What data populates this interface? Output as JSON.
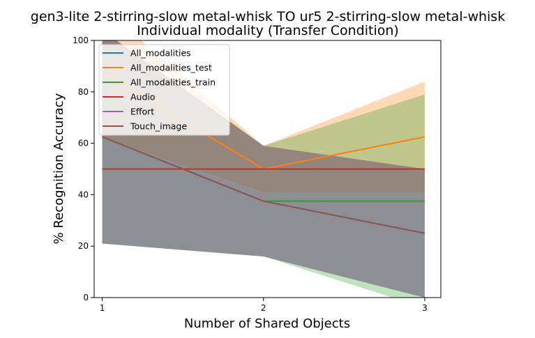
{
  "chart_data": {
    "type": "line",
    "title": "gen3-lite 2-stirring-slow metal-whisk TO ur5 2-stirring-slow metal-whisk",
    "subtitle": "Individual modality (Transfer Condition)",
    "xlabel": "Number of Shared Objects",
    "ylabel": "% Recognition Accuracy",
    "x": [
      1,
      2,
      3
    ],
    "xticks": [
      "1",
      "2",
      "3"
    ],
    "xlim": [
      0.95,
      3.1
    ],
    "ylim": [
      0,
      100
    ],
    "yticks": [
      "0",
      "20",
      "40",
      "60",
      "80",
      "100"
    ],
    "grid": false,
    "legend_position": "top-left",
    "series": [
      {
        "name": "All_modalities",
        "color": "#1f77b4",
        "values": [
          62.5,
          37.5,
          25
        ],
        "lower": [
          21,
          16,
          0
        ],
        "upper": [
          104,
          59,
          50
        ]
      },
      {
        "name": "All_modalities_test",
        "color": "#ff7f0e",
        "values": [
          87.5,
          50,
          62.5
        ],
        "lower": [
          62,
          41,
          41
        ],
        "upper": [
          113,
          59,
          84
        ]
      },
      {
        "name": "All_modalities_train",
        "color": "#2ca02c",
        "values": [
          62.5,
          37.5,
          37.5
        ],
        "lower": [
          21,
          16,
          -4
        ],
        "upper": [
          104,
          59,
          79
        ]
      },
      {
        "name": "Audio",
        "color": "#d62728",
        "values": [
          50,
          50,
          50
        ],
        "lower": [
          50,
          50,
          50
        ],
        "upper": [
          50,
          50,
          50
        ]
      },
      {
        "name": "Effort",
        "color": "#9467bd",
        "values": [
          62.5,
          37.5,
          25
        ],
        "lower": [
          21,
          16,
          0
        ],
        "upper": [
          104,
          59,
          50
        ]
      },
      {
        "name": "Touch_image",
        "color": "#8c564b",
        "values": [
          62.5,
          37.5,
          25
        ],
        "lower": [
          21,
          16,
          0
        ],
        "upper": [
          104,
          59,
          50
        ]
      }
    ]
  }
}
